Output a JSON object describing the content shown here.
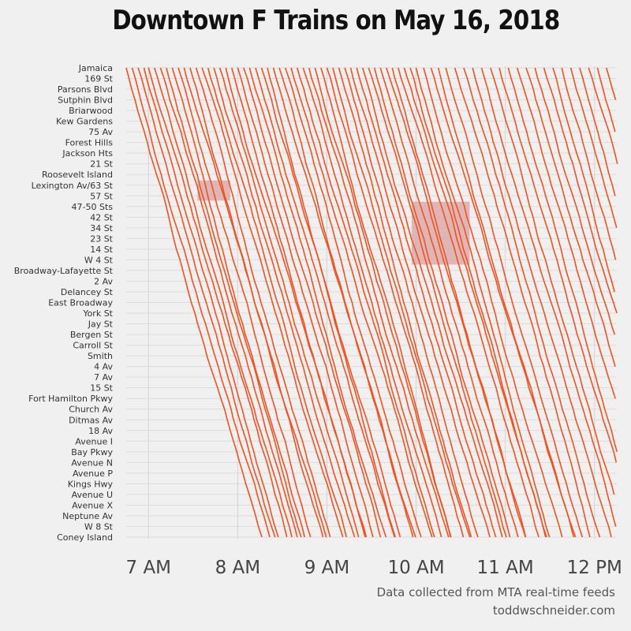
{
  "chart_data": {
    "type": "line",
    "title": "Downtown F Trains on May 16, 2018",
    "xlabel": "",
    "ylabel": "",
    "x_axis": {
      "type": "time",
      "start": "6:45",
      "end": "12:15",
      "ticks": [
        "7 AM",
        "8 AM",
        "9 AM",
        "10 AM",
        "11 AM",
        "12 PM"
      ]
    },
    "stations": [
      "Jamaica",
      "169 St",
      "Parsons Blvd",
      "Sutphin Blvd",
      "Briarwood",
      "Kew Gardens",
      "75 Av",
      "Forest Hills",
      "Jackson Hts",
      "21 St",
      "Roosevelt Island",
      "Lexington Av/63 St",
      "57 St",
      "47-50 Sts",
      "42 St",
      "34 St",
      "23 St",
      "14 St",
      "W 4 St",
      "Broadway-Lafayette St",
      "2 Av",
      "Delancey St",
      "East Broadway",
      "York St",
      "Jay St",
      "Bergen St",
      "Carroll St",
      "Smith",
      "4 Av",
      "7 Av",
      "15 St",
      "Fort Hamilton Pkwy",
      "Church Av",
      "Ditmas Av",
      "18 Av",
      "Avenue I",
      "Bay Pkwy",
      "Avenue N",
      "Avenue P",
      "Kings Hwy",
      "Avenue U",
      "Avenue X",
      "Neptune Av",
      "W 8 St",
      "Coney Island"
    ],
    "series_note": "Each line is one downtown F train running from Jamaica toward Coney Island",
    "series": {
      "train_start_times": [
        "6:45",
        "6:49",
        "6:53",
        "6:57",
        "7:00",
        "7:04",
        "7:08",
        "7:12",
        "7:16",
        "7:20",
        "7:24",
        "7:28",
        "7:32",
        "7:36",
        "7:40",
        "7:44",
        "7:48",
        "7:52",
        "7:56",
        "8:00",
        "8:04",
        "8:08",
        "8:12",
        "8:16",
        "8:20",
        "8:24",
        "8:28",
        "8:32",
        "8:36",
        "8:40",
        "8:44",
        "8:48",
        "8:52",
        "8:56",
        "9:00",
        "9:04",
        "9:08",
        "9:12",
        "9:16",
        "9:20",
        "9:24",
        "9:28",
        "9:32",
        "9:36",
        "9:40",
        "9:44",
        "9:48",
        "9:52",
        "9:56",
        "10:00",
        "10:05",
        "10:10",
        "10:15",
        "10:20",
        "10:26",
        "10:32",
        "10:38",
        "10:44",
        "10:50",
        "10:56",
        "11:02",
        "11:08",
        "11:14",
        "11:20",
        "11:26",
        "11:32",
        "11:38",
        "11:44",
        "11:50",
        "11:56",
        "12:02",
        "12:08"
      ],
      "run_minutes": 92
    },
    "color": "#f4511e",
    "delay_highlights": [
      {
        "x_start": "7:33",
        "x_end": "7:55",
        "station_from": "Lexington Av/63 St",
        "station_to": "57 St"
      },
      {
        "x_start": "9:57",
        "x_end": "10:36",
        "station_from": "47-50 Sts",
        "station_to": "W 4 St"
      }
    ],
    "grid": true,
    "highlight_color": "#d9a8a8"
  },
  "footer": {
    "source": "Data collected from MTA real-time feeds",
    "website": "toddwschneider.com"
  }
}
